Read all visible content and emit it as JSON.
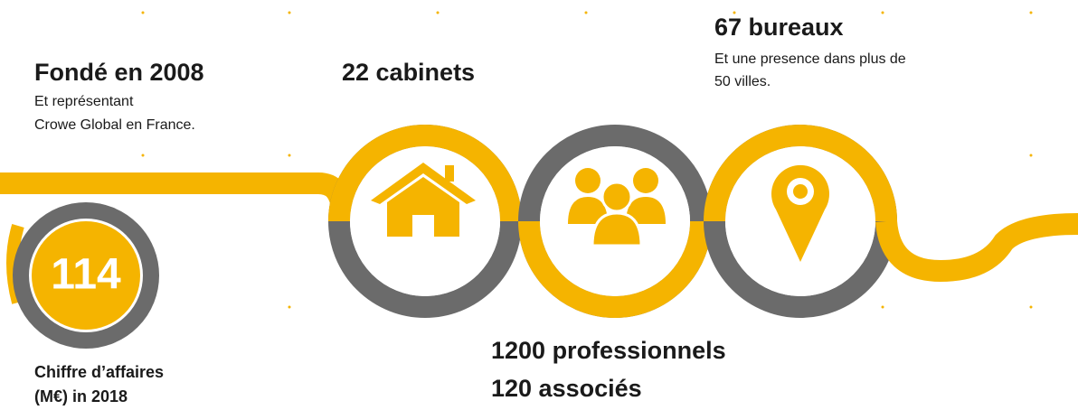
{
  "milestones": [
    {
      "title": "Fondé en 2008",
      "lines": [
        "Et représentant",
        "Crowe Global en France."
      ]
    },
    {
      "title": "22 cabinets"
    },
    {
      "title": "67 bureaux",
      "lines": [
        "Et une presence dans plus de",
        "50 villes."
      ]
    }
  ],
  "revenue": {
    "value": "114",
    "lines": [
      "Chiffre d’affaires",
      "(M€) in 2018"
    ]
  },
  "staff": [
    "1200 professionnels",
    "120 associés"
  ]
}
